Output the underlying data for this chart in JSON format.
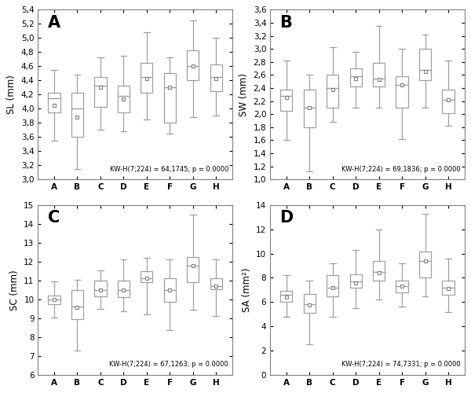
{
  "panels": [
    {
      "label": "A",
      "ylabel": "SL (mm)",
      "ylim": [
        3.0,
        5.4
      ],
      "yticks": [
        3.0,
        3.2,
        3.4,
        3.6,
        3.8,
        4.0,
        4.2,
        4.4,
        4.6,
        4.8,
        5.0,
        5.2,
        5.4
      ],
      "stat_text": "KW-H(7;224) = 64,1745; p = 0.0000",
      "boxes": [
        {
          "whislo": 3.55,
          "q1": 3.95,
          "med": 4.15,
          "mean": 4.05,
          "q3": 4.22,
          "whishi": 4.55
        },
        {
          "whislo": 3.15,
          "q1": 3.6,
          "med": 4.0,
          "mean": 3.88,
          "q3": 4.22,
          "whishi": 4.48
        },
        {
          "whislo": 3.7,
          "q1": 4.02,
          "med": 4.32,
          "mean": 4.3,
          "q3": 4.45,
          "whishi": 4.72
        },
        {
          "whislo": 3.68,
          "q1": 3.95,
          "med": 4.18,
          "mean": 4.14,
          "q3": 4.32,
          "whishi": 4.75
        },
        {
          "whislo": 3.85,
          "q1": 4.23,
          "med": 4.45,
          "mean": 4.42,
          "q3": 4.65,
          "whishi": 5.08
        },
        {
          "whislo": 3.65,
          "q1": 3.8,
          "med": 4.3,
          "mean": 4.3,
          "q3": 4.5,
          "whishi": 4.72
        },
        {
          "whislo": 3.88,
          "q1": 4.4,
          "med": 4.6,
          "mean": 4.6,
          "q3": 4.82,
          "whishi": 5.25
        },
        {
          "whislo": 3.9,
          "q1": 4.25,
          "med": 4.45,
          "mean": 4.43,
          "q3": 4.63,
          "whishi": 5.0
        }
      ]
    },
    {
      "label": "B",
      "ylabel": "SW (mm)",
      "ylim": [
        1.0,
        3.6
      ],
      "yticks": [
        1.0,
        1.2,
        1.4,
        1.6,
        1.8,
        2.0,
        2.2,
        2.4,
        2.6,
        2.8,
        3.0,
        3.2,
        3.4,
        3.6
      ],
      "stat_text": "KW-H(7;224) = 69,1836; p = 0.0000",
      "boxes": [
        {
          "whislo": 1.6,
          "q1": 2.05,
          "med": 2.28,
          "mean": 2.25,
          "q3": 2.38,
          "whishi": 2.82
        },
        {
          "whislo": 1.12,
          "q1": 1.8,
          "med": 2.1,
          "mean": 2.1,
          "q3": 2.38,
          "whishi": 2.6
        },
        {
          "whislo": 1.88,
          "q1": 2.1,
          "med": 2.4,
          "mean": 2.38,
          "q3": 2.6,
          "whishi": 3.02
        },
        {
          "whislo": 2.1,
          "q1": 2.42,
          "med": 2.58,
          "mean": 2.55,
          "q3": 2.7,
          "whishi": 2.95
        },
        {
          "whislo": 2.1,
          "q1": 2.42,
          "med": 2.55,
          "mean": 2.53,
          "q3": 2.78,
          "whishi": 3.35
        },
        {
          "whislo": 1.62,
          "q1": 2.1,
          "med": 2.45,
          "mean": 2.45,
          "q3": 2.58,
          "whishi": 3.0
        },
        {
          "whislo": 2.1,
          "q1": 2.52,
          "med": 2.68,
          "mean": 2.65,
          "q3": 3.0,
          "whishi": 3.22
        },
        {
          "whislo": 1.82,
          "q1": 2.02,
          "med": 2.22,
          "mean": 2.22,
          "q3": 2.38,
          "whishi": 2.82
        }
      ]
    },
    {
      "label": "C",
      "ylabel": "SC (mm)",
      "ylim": [
        6,
        15
      ],
      "yticks": [
        6,
        7,
        8,
        9,
        10,
        11,
        12,
        13,
        14,
        15
      ],
      "stat_text": "KW-H(7;224) = 67,1263; p = 0.0000",
      "boxes": [
        {
          "whislo": 9.05,
          "q1": 9.75,
          "med": 10.0,
          "mean": 10.0,
          "q3": 10.22,
          "whishi": 10.95
        },
        {
          "whislo": 7.3,
          "q1": 8.95,
          "med": 9.62,
          "mean": 9.58,
          "q3": 10.5,
          "whishi": 11.05
        },
        {
          "whislo": 9.5,
          "q1": 10.15,
          "med": 10.48,
          "mean": 10.48,
          "q3": 11.0,
          "whishi": 11.55
        },
        {
          "whislo": 9.35,
          "q1": 10.1,
          "med": 10.5,
          "mean": 10.48,
          "q3": 11.0,
          "whishi": 12.1
        },
        {
          "whislo": 9.2,
          "q1": 10.9,
          "med": 11.1,
          "mean": 11.12,
          "q3": 11.5,
          "whishi": 12.2
        },
        {
          "whislo": 8.35,
          "q1": 9.85,
          "med": 10.5,
          "mean": 10.48,
          "q3": 11.1,
          "whishi": 12.1
        },
        {
          "whislo": 9.45,
          "q1": 10.9,
          "med": 11.8,
          "mean": 11.78,
          "q3": 12.25,
          "whishi": 14.5
        },
        {
          "whislo": 9.1,
          "q1": 10.52,
          "med": 10.72,
          "mean": 10.7,
          "q3": 11.1,
          "whishi": 12.1
        }
      ]
    },
    {
      "label": "D",
      "ylabel": "SA (mm²)",
      "ylim": [
        0,
        14
      ],
      "yticks": [
        0,
        2,
        4,
        6,
        8,
        10,
        12,
        14
      ],
      "stat_text": "KW-H(7;224) = 74,7331; p = 0.0000",
      "boxes": [
        {
          "whislo": 4.8,
          "q1": 6.0,
          "med": 6.6,
          "mean": 6.4,
          "q3": 6.9,
          "whishi": 8.2
        },
        {
          "whislo": 2.5,
          "q1": 5.1,
          "med": 5.8,
          "mean": 5.78,
          "q3": 6.7,
          "whishi": 7.8
        },
        {
          "whislo": 4.8,
          "q1": 6.5,
          "med": 7.2,
          "mean": 7.2,
          "q3": 8.2,
          "whishi": 9.2
        },
        {
          "whislo": 5.5,
          "q1": 7.2,
          "med": 7.7,
          "mean": 7.6,
          "q3": 8.3,
          "whishi": 10.3
        },
        {
          "whislo": 6.2,
          "q1": 7.8,
          "med": 8.5,
          "mean": 8.4,
          "q3": 9.4,
          "whishi": 12.0
        },
        {
          "whislo": 5.6,
          "q1": 6.8,
          "med": 7.3,
          "mean": 7.3,
          "q3": 7.8,
          "whishi": 9.2
        },
        {
          "whislo": 6.5,
          "q1": 8.0,
          "med": 9.4,
          "mean": 9.4,
          "q3": 10.2,
          "whishi": 13.3
        },
        {
          "whislo": 5.2,
          "q1": 6.6,
          "med": 7.2,
          "mean": 7.15,
          "q3": 7.8,
          "whishi": 9.6
        }
      ]
    }
  ],
  "categories": [
    "A",
    "B",
    "C",
    "D",
    "E",
    "F",
    "G",
    "H"
  ],
  "box_facecolor": "#ffffff",
  "box_edgecolor": "#a0a0a0",
  "median_color": "#a0a0a0",
  "whisker_color": "#a0a0a0",
  "cap_color": "#a0a0a0",
  "mean_marker": "s",
  "mean_facecolor": "white",
  "mean_edgecolor": "#808080",
  "fig_bg": "#ffffff"
}
